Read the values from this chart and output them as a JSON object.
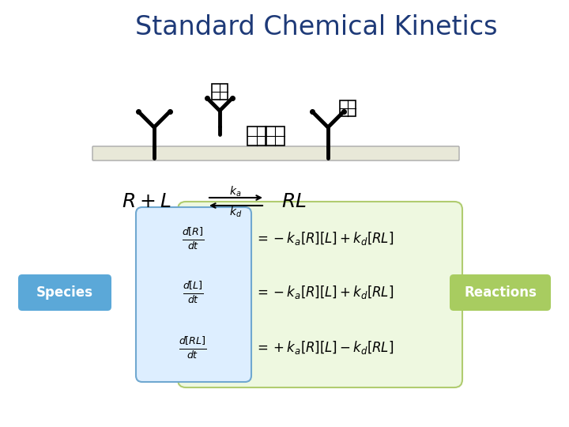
{
  "title": "Standard Chemical Kinetics",
  "title_color": "#1e3a78",
  "title_fontsize": 24,
  "bg_color": "#ffffff",
  "species_label": "Species",
  "reactions_label": "Reactions",
  "species_box_color": "#5ba8d8",
  "reactions_box_color": "#a8cc60",
  "membrane_color": "#e8e8d8",
  "receptor_color": "#000000",
  "eq_fontsize": 13,
  "label_fontsize": 12
}
